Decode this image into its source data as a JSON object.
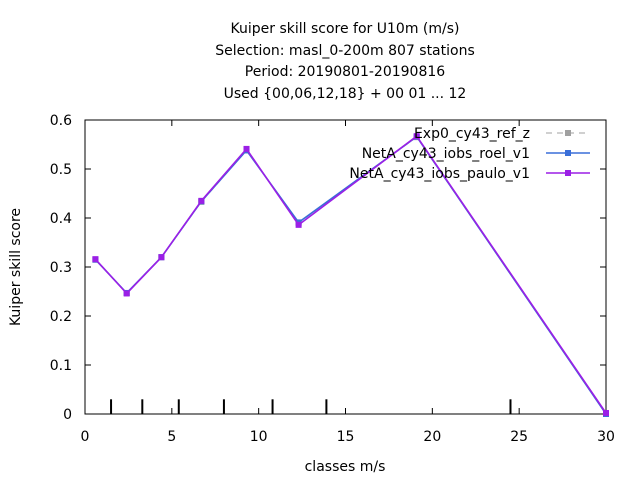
{
  "chart_data": {
    "type": "line",
    "title_lines": [
      "Kuiper skill score  for U10m (m/s)",
      "Selection: masl_0-200m    807 stations",
      "Period: 20190801-20190816",
      "Used {00,06,12,18} + 00 01 ... 12"
    ],
    "xlabel": "classes m/s",
    "ylabel": "Kuiper skill score",
    "xlim": [
      0,
      30
    ],
    "ylim": [
      0,
      0.6
    ],
    "x_ticks": [
      "0",
      "5",
      "10",
      "15",
      "20",
      "25",
      "30"
    ],
    "x_tick_values": [
      0,
      5,
      10,
      15,
      20,
      25,
      30
    ],
    "y_ticks": [
      "0",
      "0.1",
      "0.2",
      "0.3",
      "0.4",
      "0.5",
      "0.6"
    ],
    "y_tick_values": [
      0,
      0.1,
      0.2,
      0.3,
      0.4,
      0.5,
      0.6
    ],
    "class_boundaries": [
      1.5,
      3.3,
      5.4,
      8.0,
      10.8,
      13.9,
      24.5
    ],
    "legend_position": "top-right",
    "series": [
      {
        "name": "Exp0_cy43_ref_z",
        "color": "#a0a0a0",
        "dashed": true,
        "x": [
          0.6,
          2.4,
          4.4,
          6.7,
          9.3,
          12.3,
          19.1,
          30.0
        ],
        "y": [
          0.315,
          0.247,
          0.32,
          0.433,
          0.538,
          0.39,
          0.565,
          0.0
        ]
      },
      {
        "name": "NetA_cy43_iobs_roel_v1",
        "color": "#3a6fd8",
        "dashed": false,
        "x": [
          0.6,
          2.4,
          4.4,
          6.7,
          9.3,
          12.3,
          19.1,
          30.0
        ],
        "y": [
          0.315,
          0.247,
          0.32,
          0.434,
          0.538,
          0.391,
          0.566,
          0.0
        ]
      },
      {
        "name": "NetA_cy43_iobs_paulo_v1",
        "color": "#9b1fe6",
        "dashed": false,
        "x": [
          0.6,
          2.4,
          4.4,
          6.7,
          9.3,
          12.3,
          19.1,
          30.0
        ],
        "y": [
          0.316,
          0.246,
          0.32,
          0.435,
          0.541,
          0.386,
          0.567,
          0.002
        ]
      }
    ]
  }
}
